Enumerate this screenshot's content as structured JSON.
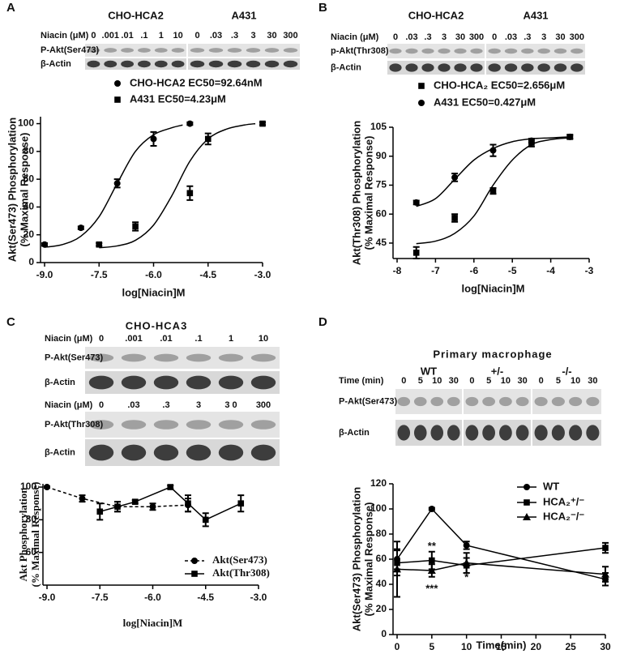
{
  "panels": [
    "A",
    "B",
    "C",
    "D"
  ],
  "blots": [
    {
      "groups": [
        "CHO-HCA2",
        "A431"
      ],
      "sections": [
        {
          "dose_label": "Niacin (μM)",
          "doses": [
            [
              "0",
              ".001",
              ".01",
              ".1",
              "1",
              "10"
            ],
            [
              "0",
              ".03",
              ".3",
              "3",
              "30",
              "300"
            ]
          ],
          "rows": [
            "P-Akt(Ser473)",
            "β-Actin"
          ]
        }
      ]
    },
    {
      "groups": [
        "CHO-HCA2",
        "A431"
      ],
      "sections": [
        {
          "dose_label": "Niacin (μM)",
          "doses": [
            [
              "0",
              ".03",
              ".3",
              "3",
              "30",
              "300"
            ],
            [
              "0",
              ".03",
              ".3",
              "3",
              "30",
              "300"
            ]
          ],
          "rows": [
            "p-Akt(Thr308)",
            "β-Actin"
          ]
        }
      ]
    },
    {
      "title": "CHO-HCA3",
      "sections": [
        {
          "dose_label": "Niacin (μM)",
          "doses": [
            [
              "0",
              ".001",
              ".01",
              ".1",
              "1",
              "10"
            ]
          ],
          "rows": [
            "P-Akt(Ser473)",
            "β-Actin"
          ]
        },
        {
          "dose_label": "Niacin (μM)",
          "doses": [
            [
              "0",
              ".03",
              ".3",
              "3",
              "3 0",
              "300"
            ]
          ],
          "rows": [
            "P-Akt(Thr308)",
            "β-Actin"
          ]
        }
      ]
    },
    {
      "title": "Primary macrophage",
      "groups": [
        "WT",
        "+/-",
        "-/-"
      ],
      "sections": [
        {
          "dose_label": "Time (min)",
          "doses": [
            [
              "0",
              "5",
              "10",
              "30"
            ],
            [
              "0",
              "5",
              "10",
              "30"
            ],
            [
              "0",
              "5",
              "10",
              "30"
            ]
          ],
          "rows": [
            "P-Akt(Ser473)",
            "β-Actin"
          ]
        }
      ]
    }
  ],
  "chart_data": [
    {
      "type": "scatter",
      "xlabel": "log[Niacin]M",
      "ylabel": [
        "Akt(Ser473) Phosphorylation",
        "(% Maximal Response)"
      ],
      "xlim": [
        -9,
        -3
      ],
      "xticks": [
        {
          "value": -9,
          "label": "-9.0"
        },
        -7.5,
        {
          "value": -6,
          "label": "-6.0"
        },
        -4.5,
        {
          "value": -3,
          "label": "-3.0"
        }
      ],
      "ylim": [
        0,
        105
      ],
      "yticks": [
        0,
        20,
        40,
        60,
        80,
        100
      ],
      "series": [
        {
          "name": "CHO-HCA2 EC50=92.64nM",
          "color": "#000000",
          "marker": "circle",
          "x": [
            -9,
            -8,
            -7,
            -6,
            -5
          ],
          "values": [
            13,
            25,
            57,
            89,
            100
          ],
          "errors": [
            1,
            1,
            3,
            5,
            1
          ],
          "fit": {
            "x": [
              -9,
              -8.5,
              -8,
              -7.5,
              -7,
              -6.5,
              -6,
              -5.5,
              -5.2
            ],
            "values": [
              11,
              13,
              19,
              33,
              57,
              80,
              92,
              97,
              99
            ]
          }
        },
        {
          "name": "A431 EC50=4.23μM",
          "color": "#000000",
          "marker": "square",
          "x": [
            -7.5,
            -6.5,
            -5,
            -4.5,
            -3
          ],
          "values": [
            13,
            26,
            50,
            89,
            100
          ],
          "errors": [
            1,
            3,
            5,
            4,
            1
          ],
          "fit": {
            "x": [
              -7.5,
              -7,
              -6.5,
              -6,
              -5.5,
              -5,
              -4.5,
              -4,
              -3.5,
              -3.2
            ],
            "values": [
              10.7,
              12,
              16,
              27,
              48,
              73,
              89,
              96,
              99,
              100
            ]
          }
        }
      ]
    },
    {
      "type": "scatter",
      "xlabel": "log[Niacin]M",
      "ylabel": [
        "Akt(Thr308) Phosphorylation",
        "(% Maximal Response)"
      ],
      "xlim": [
        -8,
        -3
      ],
      "xticks": [
        -8,
        -7,
        -6,
        -5,
        -4,
        -3
      ],
      "ylim": [
        37,
        105
      ],
      "yticks": [
        45,
        60,
        75,
        90,
        105
      ],
      "series": [
        {
          "name": "CHO-HCA₂ EC50=2.656μM",
          "color": "#000000",
          "marker": "square",
          "x": [
            -7.5,
            -6.5,
            -5.5,
            -4.5,
            -3.5
          ],
          "values": [
            40,
            58,
            72,
            97,
            100
          ],
          "errors": [
            3,
            2,
            1.5,
            2,
            1
          ],
          "fit": {
            "x": [
              -7.5,
              -7,
              -6.5,
              -6,
              -5.5,
              -5,
              -4.5,
              -4,
              -3.5
            ],
            "values": [
              44.7,
              46,
              50,
              59,
              75,
              88,
              96,
              98.6,
              99.5
            ]
          }
        },
        {
          "name": "A431 EC50=0.427μM",
          "color": "#000000",
          "marker": "circle",
          "x": [
            -7.5,
            -6.5,
            -5.5,
            -4.5,
            -3.5
          ],
          "values": [
            66,
            79,
            93,
            98,
            100
          ],
          "errors": [
            1,
            2,
            3,
            1,
            1
          ],
          "fit": {
            "x": [
              -7.5,
              -7,
              -6.5,
              -6,
              -5.5,
              -5,
              -4.5,
              -4,
              -3.5
            ],
            "values": [
              64,
              68,
              78,
              88,
              94,
              97.5,
              99,
              99.5,
              100
            ]
          }
        }
      ]
    },
    {
      "type": "line",
      "xlabel": "log[Niacin]M",
      "ylabel": [
        "Akt Phosphorylation",
        "(% Maximal Response)"
      ],
      "xlim": [
        -9,
        -3
      ],
      "xticks": [
        {
          "value": -9,
          "label": "-9.0"
        },
        -7.5,
        {
          "value": -6,
          "label": "-6.0"
        },
        -4.5,
        {
          "value": -3,
          "label": "-3.0"
        }
      ],
      "ylim": [
        40,
        102
      ],
      "yticks": [
        60,
        80,
        100
      ],
      "series": [
        {
          "name": "Akt(Ser473)",
          "color": "#000000",
          "marker": "circle",
          "dash": true,
          "x": [
            -9,
            -8,
            -7,
            -6,
            -5
          ],
          "values": [
            100,
            93,
            88,
            88,
            89
          ],
          "errors": [
            0.5,
            2,
            3,
            2,
            4
          ]
        },
        {
          "name": "Akt(Thr308)",
          "color": "#000000",
          "marker": "square",
          "dash": false,
          "x": [
            -7.5,
            -7,
            -6.5,
            -5.5,
            -5,
            -4.5,
            -3.5
          ],
          "values": [
            85,
            88,
            91,
            100,
            90,
            80,
            90
          ],
          "errors": [
            5,
            3,
            1,
            1,
            5,
            4,
            5
          ]
        }
      ]
    },
    {
      "type": "line",
      "xlabel": "Time(min)",
      "ylabel": [
        "Akt(Ser473) Phosphorylation",
        "(% Maximal Response)"
      ],
      "xlim": [
        0,
        30
      ],
      "xticks": [
        0,
        5,
        10,
        15,
        20,
        25,
        30
      ],
      "ylim": [
        0,
        120
      ],
      "yticks": [
        0,
        20,
        40,
        60,
        80,
        100,
        120
      ],
      "series": [
        {
          "name": "WT",
          "color": "#000000",
          "marker": "circle",
          "dash": false,
          "x": [
            0,
            5,
            10,
            30
          ],
          "values": [
            60,
            100,
            71,
            44
          ],
          "errors": [
            8,
            1,
            3,
            5
          ]
        },
        {
          "name": "HCA₂⁺/⁻",
          "color": "#000000",
          "marker": "square",
          "dash": false,
          "x": [
            0,
            5,
            10,
            30
          ],
          "values": [
            57,
            59,
            55,
            69
          ],
          "errors": [
            10,
            7,
            6,
            4
          ]
        },
        {
          "name": "HCA₂⁻/⁻",
          "color": "#000000",
          "marker": "triangle",
          "dash": false,
          "x": [
            0,
            5,
            10,
            30
          ],
          "values": [
            52,
            51,
            57,
            48
          ],
          "errors": [
            22,
            5,
            8,
            6
          ]
        }
      ],
      "annotations": [
        {
          "text": "**",
          "x": 5,
          "y": 70
        },
        {
          "text": "***",
          "x": 5,
          "y": 36
        },
        {
          "text": "*",
          "x": 10,
          "y": 45
        }
      ]
    }
  ]
}
